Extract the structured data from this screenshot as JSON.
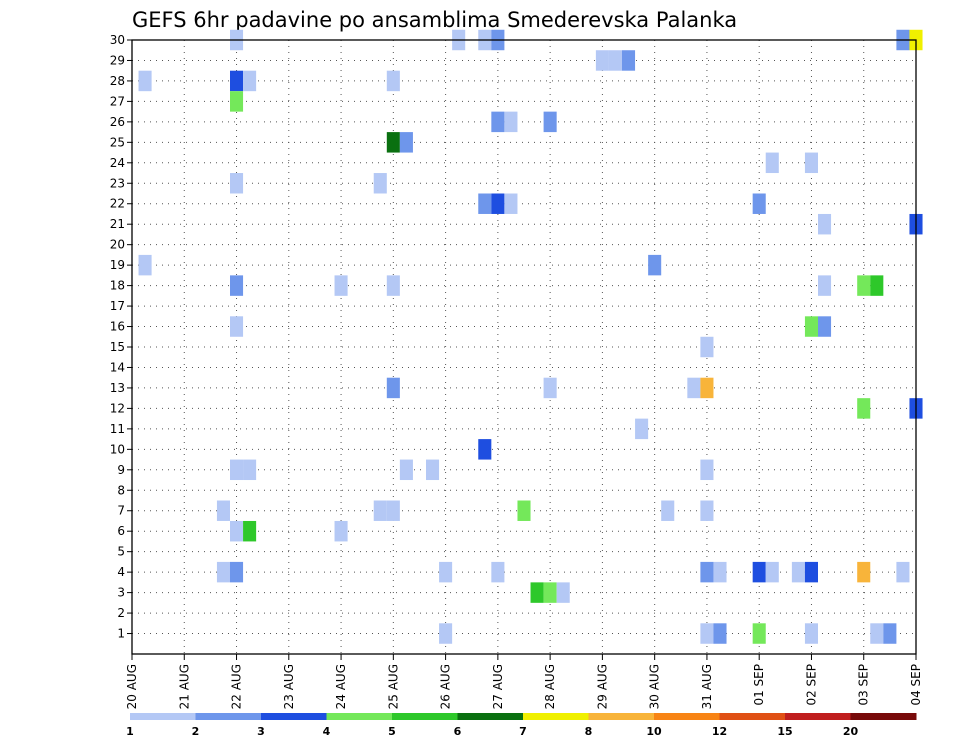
{
  "chart_data": {
    "type": "heatmap",
    "title": "GEFS 6hr padavine po ansamblima Smederevska Palanka",
    "xlabel": "",
    "ylabel": "",
    "y_ticks": [
      "1",
      "2",
      "3",
      "4",
      "5",
      "6",
      "7",
      "8",
      "9",
      "10",
      "11",
      "12",
      "13",
      "14",
      "15",
      "16",
      "17",
      "18",
      "19",
      "20",
      "21",
      "22",
      "23",
      "24",
      "25",
      "26",
      "27",
      "28",
      "29",
      "30"
    ],
    "x_ticks": [
      "20 AUG",
      "21 AUG",
      "22 AUG",
      "23 AUG",
      "24 AUG",
      "25 AUG",
      "26 AUG",
      "27 AUG",
      "28 AUG",
      "29 AUG",
      "30 AUG",
      "31 AUG",
      "01 SEP",
      "02 SEP",
      "03 SEP",
      "04 SEP"
    ],
    "x_range_days": [
      0,
      15
    ],
    "y_range": [
      0,
      30
    ],
    "grid": true,
    "colorbar": {
      "labels": [
        "1",
        "2",
        "3",
        "4",
        "5",
        "6",
        "7",
        "8",
        "10",
        "12",
        "15",
        "20"
      ],
      "colors": [
        "#b4c8f5",
        "#6e96eb",
        "#1e4ee0",
        "#74e85a",
        "#2ec82a",
        "#0a7010",
        "#f0f000",
        "#f8b43a",
        "#f88414",
        "#e05014",
        "#c01e1e",
        "#780a0a"
      ]
    },
    "cells": [
      [
        22.0,
        30,
        1
      ],
      [
        26.25,
        30,
        1
      ],
      [
        26.75,
        30,
        1
      ],
      [
        27.0,
        30,
        2
      ],
      [
        34.75,
        30,
        2
      ],
      [
        35.0,
        30,
        7
      ],
      [
        29.0,
        29,
        1
      ],
      [
        29.25,
        29,
        1
      ],
      [
        29.5,
        29,
        2
      ],
      [
        20.25,
        28,
        1
      ],
      [
        22.0,
        28,
        3
      ],
      [
        22.25,
        28,
        1
      ],
      [
        25.0,
        28,
        1
      ],
      [
        22.0,
        27,
        4
      ],
      [
        27.0,
        26,
        2
      ],
      [
        27.25,
        26,
        1
      ],
      [
        28.0,
        26,
        2
      ],
      [
        25.0,
        25,
        6
      ],
      [
        25.25,
        25,
        2
      ],
      [
        32.25,
        24,
        1
      ],
      [
        33.0,
        24,
        1
      ],
      [
        22.0,
        23,
        1
      ],
      [
        24.75,
        23,
        1
      ],
      [
        26.75,
        22,
        2
      ],
      [
        27.0,
        22,
        3
      ],
      [
        27.25,
        22,
        1
      ],
      [
        32.0,
        22,
        2
      ],
      [
        33.25,
        21,
        1
      ],
      [
        35.0,
        21,
        3
      ],
      [
        20.25,
        19,
        1
      ],
      [
        30.0,
        19,
        2
      ],
      [
        22.0,
        18,
        2
      ],
      [
        24.0,
        18,
        1
      ],
      [
        25.0,
        18,
        1
      ],
      [
        33.25,
        18,
        1
      ],
      [
        34.0,
        18,
        4
      ],
      [
        34.25,
        18,
        5
      ],
      [
        22.0,
        16,
        1
      ],
      [
        33.0,
        16,
        4
      ],
      [
        33.25,
        16,
        2
      ],
      [
        31.0,
        15,
        1
      ],
      [
        25.0,
        13,
        2
      ],
      [
        28.0,
        13,
        1
      ],
      [
        30.75,
        13,
        1
      ],
      [
        31.0,
        13,
        8
      ],
      [
        34.0,
        12,
        4
      ],
      [
        35.0,
        12,
        3
      ],
      [
        29.75,
        11,
        1
      ],
      [
        26.75,
        10,
        3
      ],
      [
        22.0,
        9,
        1
      ],
      [
        22.25,
        9,
        1
      ],
      [
        25.25,
        9,
        1
      ],
      [
        25.75,
        9,
        1
      ],
      [
        31.0,
        9,
        1
      ],
      [
        21.75,
        7,
        1
      ],
      [
        24.75,
        7,
        1
      ],
      [
        25.0,
        7,
        1
      ],
      [
        27.5,
        7,
        4
      ],
      [
        30.25,
        7,
        1
      ],
      [
        31.0,
        7,
        1
      ],
      [
        22.0,
        6,
        1
      ],
      [
        22.25,
        6,
        5
      ],
      [
        24.0,
        6,
        1
      ],
      [
        21.75,
        4,
        1
      ],
      [
        22.0,
        4,
        2
      ],
      [
        26.0,
        4,
        1
      ],
      [
        27.0,
        4,
        1
      ],
      [
        31.0,
        4,
        2
      ],
      [
        31.25,
        4,
        1
      ],
      [
        32.0,
        4,
        3
      ],
      [
        32.25,
        4,
        1
      ],
      [
        32.75,
        4,
        1
      ],
      [
        33.0,
        4,
        3
      ],
      [
        34.0,
        4,
        8
      ],
      [
        34.75,
        4,
        1
      ],
      [
        27.75,
        3,
        5
      ],
      [
        28.0,
        3,
        4
      ],
      [
        28.25,
        3,
        1
      ],
      [
        26.0,
        1,
        1
      ],
      [
        31.0,
        1,
        1
      ],
      [
        31.25,
        1,
        2
      ],
      [
        32.0,
        1,
        4
      ],
      [
        33.0,
        1,
        1
      ],
      [
        34.25,
        1,
        1
      ],
      [
        34.5,
        1,
        2
      ]
    ],
    "cell_note": "each cell: [time (days, Aug), ensemble member, colorbar class index 1-12]"
  }
}
